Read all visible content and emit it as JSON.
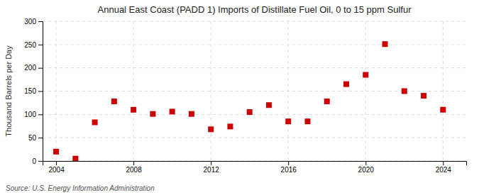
{
  "chart_data": {
    "type": "scatter",
    "title": "Annual East Coast (PADD 1) Imports of Distillate Fuel Oil, 0 to 15 ppm Sulfur",
    "y_label": "Thousand Barrels per Day",
    "annotations": [
      "Source: U.S. Energy Information Administration"
    ],
    "x": [
      2004,
      2005,
      2006,
      2007,
      2008,
      2009,
      2010,
      2011,
      2012,
      2013,
      2014,
      2015,
      2016,
      2017,
      2018,
      2019,
      2020,
      2021,
      2022,
      2023,
      2024
    ],
    "values": [
      20,
      5,
      83,
      128,
      110,
      101,
      106,
      101,
      68,
      74,
      105,
      120,
      85,
      85,
      128,
      165,
      185,
      251,
      150,
      140,
      110
    ],
    "color": "#cc0000",
    "marker": "square",
    "xlim": [
      2003.3,
      2025.2
    ],
    "xticks": [
      2004,
      2008,
      2012,
      2016,
      2020,
      2024
    ],
    "ylim": [
      0,
      300
    ],
    "yticks": [
      0,
      50,
      100,
      150,
      200,
      250,
      300
    ],
    "grid": true
  }
}
